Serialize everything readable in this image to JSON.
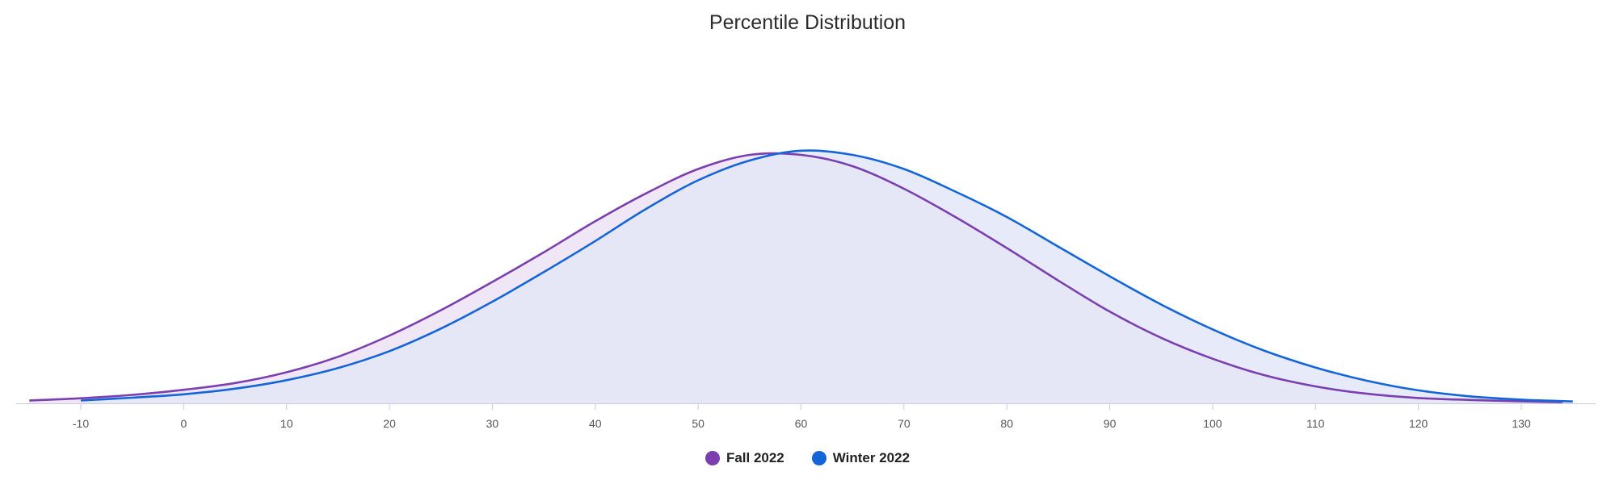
{
  "chart_data": {
    "type": "area",
    "title": "Percentile Distribution",
    "xlabel": "",
    "ylabel": "",
    "xlim": [
      -15,
      136
    ],
    "ylim": [
      0,
      1
    ],
    "x_ticks": [
      -10,
      0,
      10,
      20,
      30,
      40,
      50,
      60,
      70,
      80,
      90,
      100,
      110,
      120,
      130
    ],
    "grid": false,
    "legend_position": "bottom-center",
    "series": [
      {
        "name": "Fall 2022",
        "color": "#7b3fb0",
        "fill": "#efe6f6",
        "x": [
          -15,
          -10,
          -5,
          0,
          5,
          10,
          15,
          20,
          25,
          30,
          35,
          40,
          45,
          50,
          55,
          60,
          65,
          70,
          75,
          80,
          85,
          90,
          95,
          100,
          105,
          110,
          115,
          120,
          125,
          130,
          134
        ],
        "y": [
          0.01,
          0.018,
          0.03,
          0.048,
          0.072,
          0.11,
          0.165,
          0.24,
          0.33,
          0.43,
          0.535,
          0.645,
          0.745,
          0.83,
          0.88,
          0.88,
          0.84,
          0.76,
          0.66,
          0.55,
          0.435,
          0.325,
          0.232,
          0.158,
          0.1,
          0.06,
          0.034,
          0.019,
          0.012,
          0.007,
          0.004
        ]
      },
      {
        "name": "Winter 2022",
        "color": "#1466d8",
        "fill": "#e3e6f7",
        "x": [
          -10,
          -5,
          0,
          5,
          10,
          15,
          20,
          25,
          30,
          35,
          40,
          45,
          50,
          55,
          60,
          65,
          70,
          75,
          80,
          85,
          90,
          95,
          100,
          105,
          110,
          115,
          120,
          125,
          130,
          135
        ],
        "y": [
          0.01,
          0.02,
          0.032,
          0.052,
          0.082,
          0.125,
          0.185,
          0.265,
          0.36,
          0.465,
          0.575,
          0.69,
          0.79,
          0.86,
          0.895,
          0.88,
          0.83,
          0.75,
          0.66,
          0.555,
          0.45,
          0.35,
          0.262,
          0.187,
          0.127,
          0.08,
          0.046,
          0.025,
          0.013,
          0.007
        ]
      }
    ]
  }
}
